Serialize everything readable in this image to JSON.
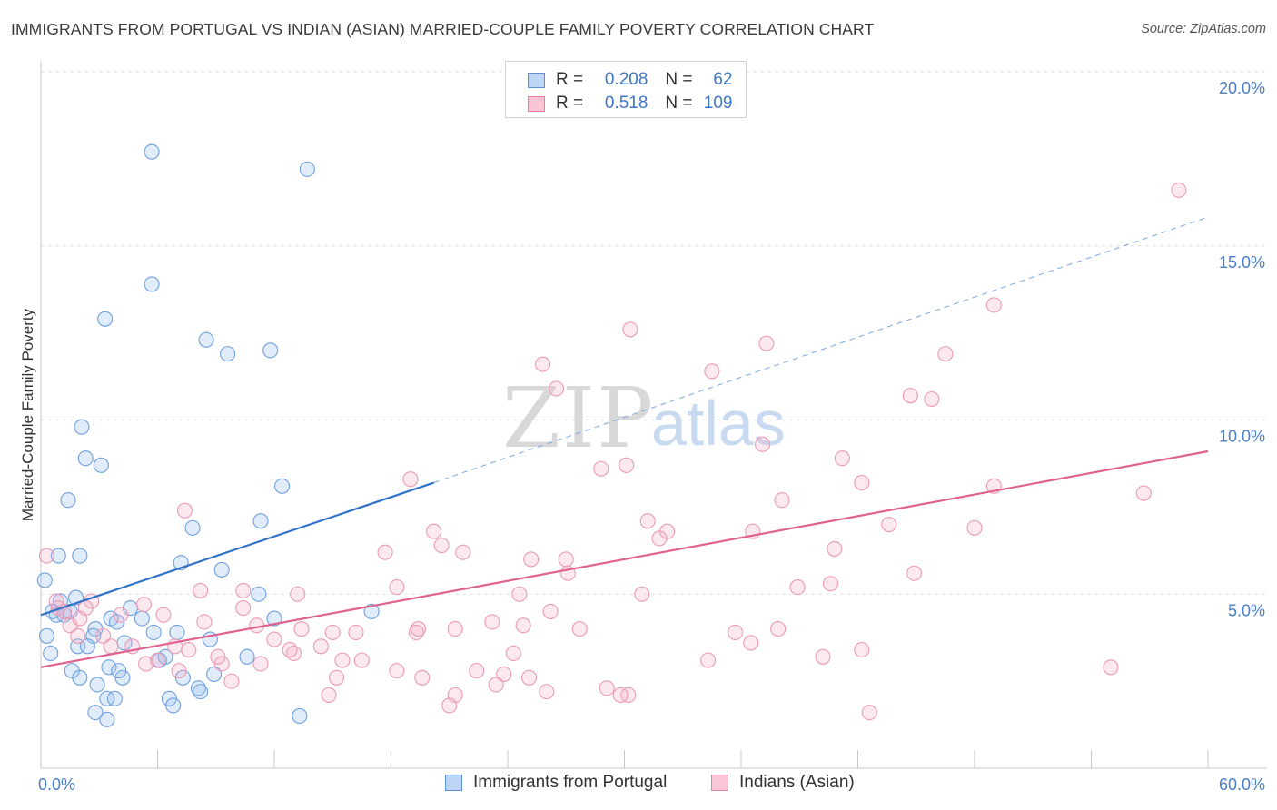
{
  "title": "IMMIGRANTS FROM PORTUGAL VS INDIAN (ASIAN) MARRIED-COUPLE FAMILY POVERTY CORRELATION CHART",
  "source": "Source: ZipAtlas.com",
  "watermark": {
    "zip": "ZIP",
    "atlas": "atlas"
  },
  "legend": {
    "rows": [
      {
        "r_label": "R =",
        "r_value": "0.208",
        "n_label": "N =",
        "n_value": "62",
        "color": "#a8c8f0",
        "border": "#5a8fd8"
      },
      {
        "r_label": "R =",
        "r_value": "0.518",
        "n_label": "N =",
        "n_value": "109",
        "color": "#f8c0d0",
        "border": "#e87ea0"
      }
    ]
  },
  "bottom_legend": [
    {
      "label": "Immigrants from Portugal",
      "color": "#a8c8f0",
      "border": "#5a8fd8"
    },
    {
      "label": "Indians (Asian)",
      "color": "#f8c0d0",
      "border": "#e87ea0"
    }
  ],
  "chart_data": {
    "type": "scatter",
    "title": "IMMIGRANTS FROM PORTUGAL VS INDIAN (ASIAN) MARRIED-COUPLE FAMILY POVERTY CORRELATION CHART",
    "xlabel": "",
    "ylabel": "Married-Couple Family Poverty",
    "xlim": [
      0,
      60
    ],
    "ylim": [
      0,
      20
    ],
    "x_tick_labels": [
      "0.0%",
      "60.0%"
    ],
    "y_tick_values": [
      5,
      10,
      15,
      20
    ],
    "y_tick_labels": [
      "5.0%",
      "10.0%",
      "15.0%",
      "20.0%"
    ],
    "grid": true,
    "legend_position": "top-center",
    "series": [
      {
        "name": "Immigrants from Portugal",
        "color": "#6fa0e0",
        "line_color": "#2f72c9",
        "trend": {
          "x0": 0,
          "y0": 4.4,
          "x1": 20.2,
          "y1": 8.2,
          "dash_to_x": 60,
          "dash_to_y": 15.8
        },
        "points": [
          [
            5.7,
            17.7
          ],
          [
            13.7,
            17.2
          ],
          [
            5.7,
            13.9
          ],
          [
            3.3,
            12.9
          ],
          [
            8.5,
            12.3
          ],
          [
            9.6,
            11.9
          ],
          [
            11.8,
            12.0
          ],
          [
            2.1,
            9.8
          ],
          [
            2.3,
            8.9
          ],
          [
            3.1,
            8.7
          ],
          [
            1.4,
            7.7
          ],
          [
            12.4,
            8.1
          ],
          [
            7.8,
            6.9
          ],
          [
            11.3,
            7.1
          ],
          [
            0.9,
            6.1
          ],
          [
            2.0,
            6.1
          ],
          [
            7.2,
            5.9
          ],
          [
            9.3,
            5.7
          ],
          [
            0.2,
            5.4
          ],
          [
            11.2,
            5.0
          ],
          [
            1.0,
            4.8
          ],
          [
            1.8,
            4.9
          ],
          [
            0.6,
            4.5
          ],
          [
            1.2,
            4.4
          ],
          [
            4.6,
            4.6
          ],
          [
            5.2,
            4.3
          ],
          [
            3.6,
            4.3
          ],
          [
            3.9,
            4.2
          ],
          [
            2.8,
            4.0
          ],
          [
            2.7,
            3.8
          ],
          [
            0.3,
            3.8
          ],
          [
            7.0,
            3.9
          ],
          [
            8.7,
            3.7
          ],
          [
            12.0,
            4.3
          ],
          [
            17.0,
            4.5
          ],
          [
            0.5,
            3.3
          ],
          [
            1.9,
            3.5
          ],
          [
            2.4,
            3.5
          ],
          [
            4.3,
            3.6
          ],
          [
            6.1,
            3.1
          ],
          [
            10.6,
            3.2
          ],
          [
            1.6,
            2.8
          ],
          [
            3.5,
            2.9
          ],
          [
            4.2,
            2.6
          ],
          [
            8.9,
            2.7
          ],
          [
            7.3,
            2.6
          ],
          [
            2.9,
            2.4
          ],
          [
            8.1,
            2.3
          ],
          [
            3.4,
            2.0
          ],
          [
            6.6,
            2.0
          ],
          [
            3.8,
            2.0
          ],
          [
            6.8,
            1.8
          ],
          [
            8.2,
            2.2
          ],
          [
            2.8,
            1.6
          ],
          [
            3.4,
            1.4
          ],
          [
            13.3,
            1.5
          ],
          [
            1.5,
            4.5
          ],
          [
            0.8,
            4.4
          ],
          [
            4.0,
            2.8
          ],
          [
            2.0,
            2.6
          ],
          [
            5.8,
            3.9
          ],
          [
            6.4,
            3.2
          ]
        ]
      },
      {
        "name": "Indians (Asian)",
        "color": "#f5a8c0",
        "line_color": "#e0628e",
        "trend": {
          "x0": 0,
          "y0": 2.9,
          "x1": 60,
          "y1": 9.1
        },
        "points": [
          [
            58.5,
            16.6
          ],
          [
            49.0,
            13.3
          ],
          [
            30.3,
            12.6
          ],
          [
            37.3,
            12.2
          ],
          [
            46.5,
            11.9
          ],
          [
            25.8,
            11.6
          ],
          [
            34.5,
            11.4
          ],
          [
            26.5,
            10.9
          ],
          [
            44.7,
            10.7
          ],
          [
            45.8,
            10.6
          ],
          [
            37.1,
            9.3
          ],
          [
            41.2,
            8.9
          ],
          [
            28.8,
            8.6
          ],
          [
            30.1,
            8.7
          ],
          [
            19.0,
            8.3
          ],
          [
            42.2,
            8.2
          ],
          [
            49.0,
            8.1
          ],
          [
            38.1,
            7.7
          ],
          [
            56.7,
            7.9
          ],
          [
            7.4,
            7.4
          ],
          [
            31.2,
            7.1
          ],
          [
            32.2,
            6.8
          ],
          [
            20.2,
            6.8
          ],
          [
            36.6,
            6.8
          ],
          [
            43.6,
            7.0
          ],
          [
            48.0,
            6.9
          ],
          [
            31.8,
            6.6
          ],
          [
            20.6,
            6.4
          ],
          [
            17.7,
            6.2
          ],
          [
            25.2,
            6.0
          ],
          [
            27.0,
            6.0
          ],
          [
            40.8,
            6.3
          ],
          [
            21.7,
            6.2
          ],
          [
            0.3,
            6.1
          ],
          [
            27.1,
            5.6
          ],
          [
            44.9,
            5.6
          ],
          [
            8.2,
            5.1
          ],
          [
            18.3,
            5.2
          ],
          [
            24.6,
            5.0
          ],
          [
            30.9,
            5.0
          ],
          [
            38.9,
            5.2
          ],
          [
            40.6,
            5.3
          ],
          [
            13.2,
            5.0
          ],
          [
            10.4,
            5.1
          ],
          [
            27.7,
            4.0
          ],
          [
            19.3,
            3.9
          ],
          [
            1.2,
            4.5
          ],
          [
            0.8,
            4.8
          ],
          [
            2.6,
            4.8
          ],
          [
            5.3,
            4.7
          ],
          [
            2.3,
            4.6
          ],
          [
            4.1,
            4.4
          ],
          [
            6.3,
            4.4
          ],
          [
            10.4,
            4.6
          ],
          [
            8.4,
            4.2
          ],
          [
            11.1,
            4.1
          ],
          [
            12.0,
            3.7
          ],
          [
            13.4,
            4.0
          ],
          [
            15.0,
            3.9
          ],
          [
            16.2,
            3.9
          ],
          [
            19.4,
            4.0
          ],
          [
            21.3,
            4.0
          ],
          [
            23.2,
            4.2
          ],
          [
            24.8,
            4.1
          ],
          [
            26.2,
            4.5
          ],
          [
            35.7,
            3.9
          ],
          [
            36.5,
            3.6
          ],
          [
            37.9,
            4.0
          ],
          [
            1.5,
            4.1
          ],
          [
            1.9,
            3.8
          ],
          [
            3.2,
            3.8
          ],
          [
            4.7,
            3.5
          ],
          [
            5.4,
            3.0
          ],
          [
            6.9,
            3.5
          ],
          [
            7.6,
            3.4
          ],
          [
            9.3,
            3.0
          ],
          [
            11.3,
            3.0
          ],
          [
            13.0,
            3.3
          ],
          [
            14.4,
            3.5
          ],
          [
            15.5,
            3.1
          ],
          [
            16.5,
            3.1
          ],
          [
            18.3,
            2.8
          ],
          [
            19.6,
            2.6
          ],
          [
            22.4,
            2.8
          ],
          [
            23.4,
            2.4
          ],
          [
            23.8,
            2.7
          ],
          [
            24.3,
            3.3
          ],
          [
            25.1,
            2.6
          ],
          [
            29.1,
            2.3
          ],
          [
            30.2,
            2.1
          ],
          [
            34.3,
            3.1
          ],
          [
            40.2,
            3.2
          ],
          [
            42.2,
            3.4
          ],
          [
            55.0,
            2.9
          ],
          [
            9.8,
            2.5
          ],
          [
            14.8,
            2.1
          ],
          [
            15.2,
            2.6
          ],
          [
            21.3,
            2.1
          ],
          [
            26.0,
            2.2
          ],
          [
            29.8,
            2.1
          ],
          [
            42.6,
            1.6
          ],
          [
            21.0,
            1.8
          ],
          [
            9.1,
            3.2
          ],
          [
            12.8,
            3.4
          ],
          [
            7.1,
            2.8
          ],
          [
            0.9,
            4.6
          ],
          [
            3.6,
            3.5
          ],
          [
            2.0,
            4.3
          ],
          [
            6.0,
            3.1
          ]
        ]
      }
    ]
  }
}
